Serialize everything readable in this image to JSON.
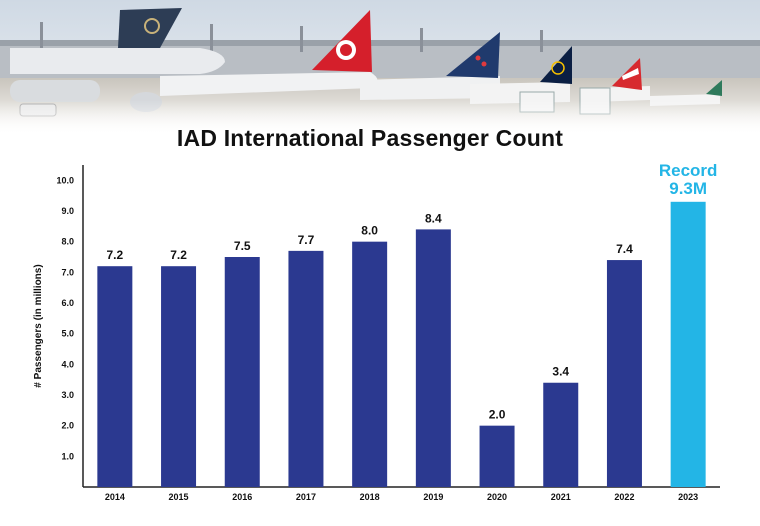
{
  "chart_data": {
    "type": "bar",
    "title": "IAD International Passenger Count",
    "ylabel": "# Passengers (in millions)",
    "xlabel": "",
    "categories": [
      "2014",
      "2015",
      "2016",
      "2017",
      "2018",
      "2019",
      "2020",
      "2021",
      "2022",
      "2023"
    ],
    "values": [
      7.2,
      7.2,
      7.5,
      7.7,
      8.0,
      8.4,
      2.0,
      3.4,
      7.4,
      9.3
    ],
    "data_labels": [
      "7.2",
      "7.2",
      "7.5",
      "7.7",
      "8.0",
      "8.4",
      "2.0",
      "3.4",
      "7.4",
      ""
    ],
    "yticks": [
      "1.0",
      "2.0",
      "3.0",
      "4.0",
      "5.0",
      "6.0",
      "7.0",
      "8.0",
      "9.0",
      "10.0"
    ],
    "ylim": [
      0,
      10.5
    ],
    "grid": false,
    "bar_color": "#2b3990",
    "highlight": {
      "category": "2023",
      "color": "#23b5e6",
      "label_line1": "Record",
      "label_line2": "9.3M"
    }
  }
}
